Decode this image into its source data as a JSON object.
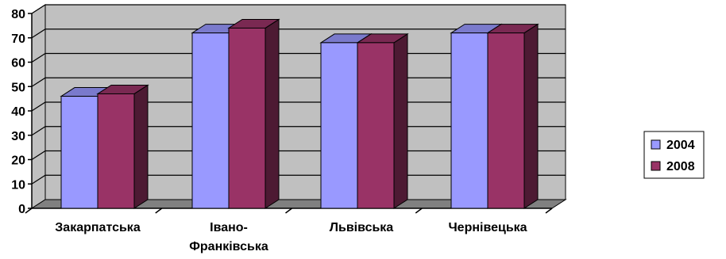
{
  "chart_data": {
    "type": "bar",
    "categories": [
      "Закарпатська",
      "Івано-Франківська",
      "Львівська",
      "Чернівецька"
    ],
    "category_lines": [
      [
        "Закарпатська"
      ],
      [
        "Івано-",
        "Франківська"
      ],
      [
        "Львівська"
      ],
      [
        "Чернівецька"
      ]
    ],
    "series": [
      {
        "name": "2004",
        "values": [
          46,
          72,
          68,
          72
        ]
      },
      {
        "name": "2008",
        "values": [
          47,
          74,
          68,
          72
        ]
      }
    ],
    "ylim": [
      0,
      80
    ],
    "yticks": [
      "0",
      "10",
      "20",
      "30",
      "40",
      "50",
      "60",
      "70",
      "80"
    ],
    "grid": true,
    "legend": "right",
    "colors": {
      "series": [
        "#9999ff",
        "#993366"
      ],
      "series_top": [
        "#7a7acc",
        "#7a2952"
      ],
      "series_side": [
        "#4d4d80",
        "#4d1a33"
      ],
      "wall": "#c0c0c0",
      "floor": "#808080",
      "gridline": "#000000"
    }
  }
}
